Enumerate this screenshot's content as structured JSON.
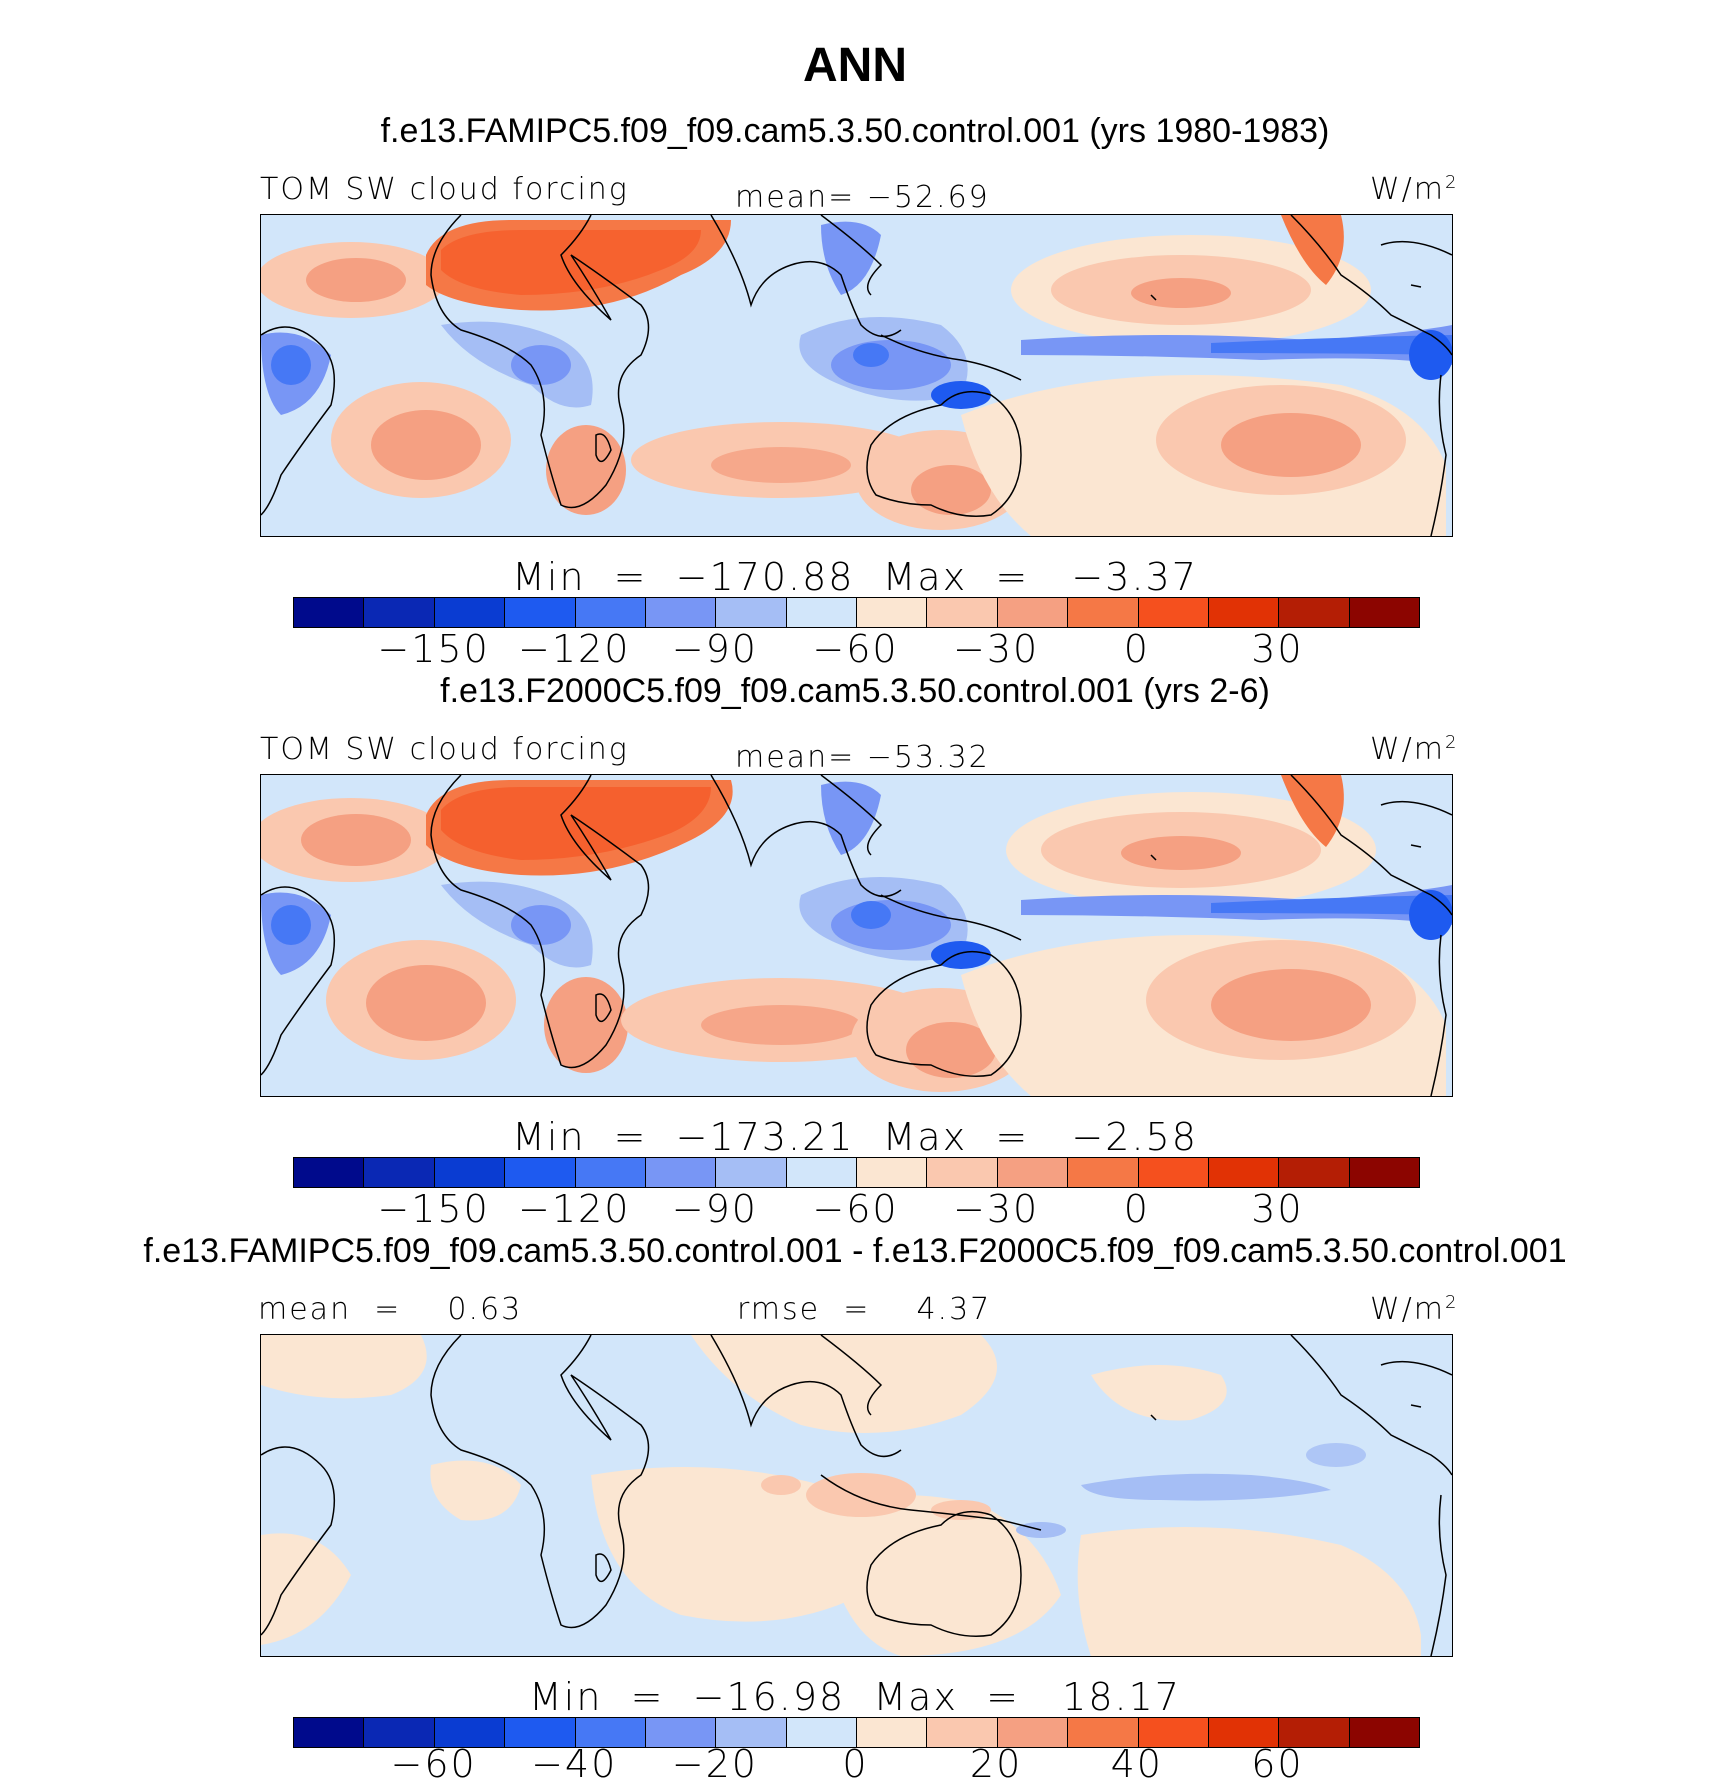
{
  "title": "ANN",
  "colorbar_colors": [
    "#000a8c",
    "#0a28b4",
    "#0a3cd2",
    "#1e5af0",
    "#4678f5",
    "#7896f5",
    "#a5bef5",
    "#d2e6fa",
    "#fbe6d2",
    "#fac8af",
    "#f5a082",
    "#f57846",
    "#f5501e",
    "#e13205",
    "#b41e05",
    "#8c0500"
  ],
  "panels": [
    {
      "case_title": "f.e13.FAMIPC5.f09_f09.cam5.3.50.control.001 (yrs 1980-1983)",
      "left_label": "TOM SW cloud forcing",
      "center_label": "mean= −52.69",
      "units": "W/m",
      "units_sup": "2",
      "minmax": "Min  =  −170.88  Max  =   −3.37",
      "ticks": [
        "−150",
        "−120",
        "−90",
        "−60",
        "−30",
        "0",
        "30"
      ]
    },
    {
      "case_title": "f.e13.F2000C5.f09_f09.cam5.3.50.control.001 (yrs 2-6)",
      "left_label": "TOM SW cloud forcing",
      "center_label": "mean= −53.32",
      "units": "W/m",
      "units_sup": "2",
      "minmax": "Min  =  −173.21  Max  =   −2.58",
      "ticks": [
        "−150",
        "−120",
        "−90",
        "−60",
        "−30",
        "0",
        "30"
      ]
    },
    {
      "case_title": "f.e13.FAMIPC5.f09_f09.cam5.3.50.control.001 - f.e13.F2000C5.f09_f09.cam5.3.50.control.001",
      "left_label": "mean  =    0.63",
      "center_label": "rmse  =    4.37",
      "units": "W/m",
      "units_sup": "2",
      "minmax": "Min  =  −16.98  Max  =   18.17",
      "ticks": [
        "−60",
        "−40",
        "−20",
        "0",
        "20",
        "40",
        "60"
      ]
    }
  ]
}
